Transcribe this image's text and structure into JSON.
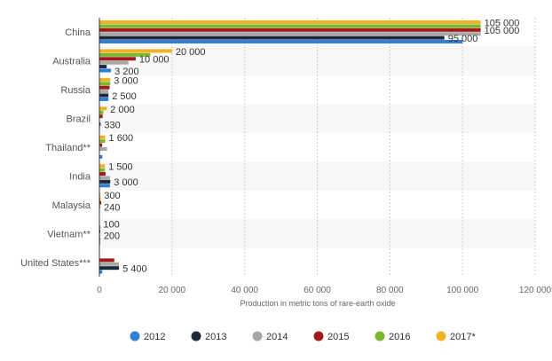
{
  "chart_data": {
    "type": "bar",
    "orientation": "horizontal",
    "categories": [
      "China",
      "Australia",
      "Russia",
      "Brazil",
      "Thailand**",
      "India",
      "Malaysia",
      "Vietnam**",
      "United States***"
    ],
    "series": [
      {
        "name": "2012",
        "color": "#2f7ed8",
        "values": [
          100000,
          3200,
          2500,
          140,
          800,
          2900,
          100,
          200,
          800
        ]
      },
      {
        "name": "2013",
        "color": "#1a2a3a",
        "values": [
          95000,
          2000,
          2500,
          330,
          0,
          3000,
          100,
          200,
          5400
        ]
      },
      {
        "name": "2014",
        "color": "#a8a8a8",
        "values": [
          105000,
          8000,
          2500,
          0,
          2100,
          2900,
          240,
          200,
          5400
        ]
      },
      {
        "name": "2015",
        "color": "#a11a1a",
        "values": [
          105000,
          10000,
          2800,
          880,
          760,
          1700,
          500,
          250,
          4100
        ]
      },
      {
        "name": "2016",
        "color": "#7cb82f",
        "values": [
          105000,
          14000,
          3000,
          1100,
          1600,
          1500,
          300,
          300,
          0
        ]
      },
      {
        "name": "2017*",
        "color": "#f0b323",
        "values": [
          105000,
          20000,
          3000,
          2000,
          1600,
          1500,
          300,
          100,
          0
        ]
      }
    ],
    "data_labels": [
      {
        "category": "China",
        "label": "105 000",
        "series": "2017*"
      },
      {
        "category": "China",
        "label": "105 000",
        "series": "2015"
      },
      {
        "category": "China",
        "label": "95 000",
        "series": "2013"
      },
      {
        "category": "Australia",
        "label": "20 000",
        "series": "2017*"
      },
      {
        "category": "Australia",
        "label": "10 000",
        "series": "2015"
      },
      {
        "category": "Australia",
        "label": "3 200",
        "series": "2012"
      },
      {
        "category": "Russia",
        "label": "3 000",
        "series": "2017*"
      },
      {
        "category": "Russia",
        "label": "2 500",
        "series": "2013"
      },
      {
        "category": "Brazil",
        "label": "2 000",
        "series": "2017*"
      },
      {
        "category": "Brazil",
        "label": "330",
        "series": "2013"
      },
      {
        "category": "Thailand**",
        "label": "1 600",
        "series": "2017*"
      },
      {
        "category": "India",
        "label": "1 500",
        "series": "2017*"
      },
      {
        "category": "India",
        "label": "3 000",
        "series": "2013"
      },
      {
        "category": "Malaysia",
        "label": "300",
        "series": "2017*"
      },
      {
        "category": "Malaysia",
        "label": "240",
        "series": "2014"
      },
      {
        "category": "Vietnam**",
        "label": "100",
        "series": "2017*"
      },
      {
        "category": "Vietnam**",
        "label": "200",
        "series": "2014"
      },
      {
        "category": "United States***",
        "label": "5 400",
        "series": "2013"
      }
    ],
    "xlabel": "Production in metric tons of rare-earth oxide",
    "ylabel": "",
    "xlim": [
      0,
      120000
    ],
    "x_ticks": [
      0,
      20000,
      40000,
      60000,
      80000,
      100000,
      120000
    ],
    "x_tick_labels": [
      "0",
      "20 000",
      "40 000",
      "60 000",
      "80 000",
      "100 000",
      "120 000"
    ],
    "grid": true,
    "legend_position": "bottom"
  }
}
